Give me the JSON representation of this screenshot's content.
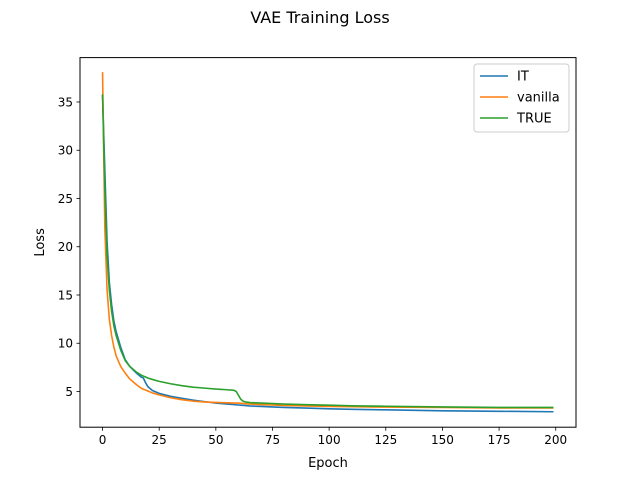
{
  "chart_data": {
    "type": "line",
    "title": "VAE Training Loss",
    "xlabel": "Epoch",
    "ylabel": "Loss",
    "xlim": [
      -9.95,
      208.95
    ],
    "ylim": [
      1.3,
      39.6
    ],
    "xticks": [
      0,
      25,
      50,
      75,
      100,
      125,
      150,
      175,
      200
    ],
    "yticks": [
      5,
      10,
      15,
      20,
      25,
      30,
      35
    ],
    "grid": false,
    "legend_position": "top-right",
    "x": [
      0,
      1,
      2,
      3,
      4,
      5,
      6,
      8,
      10,
      12,
      15,
      17,
      18,
      19,
      20,
      22,
      25,
      30,
      35,
      40,
      45,
      50,
      55,
      58,
      59,
      60,
      61,
      62,
      63,
      65,
      70,
      75,
      80,
      90,
      100,
      110,
      125,
      150,
      175,
      199
    ],
    "series": [
      {
        "name": "IT",
        "color": "#1f77b4",
        "values": [
          35.7,
          28.0,
          20.5,
          16.3,
          14.0,
          12.3,
          11.2,
          9.6,
          8.3,
          7.6,
          6.9,
          6.5,
          6.4,
          5.9,
          5.5,
          5.1,
          4.8,
          4.5,
          4.3,
          4.1,
          3.95,
          3.8,
          3.7,
          3.65,
          3.62,
          3.6,
          3.58,
          3.56,
          3.54,
          3.5,
          3.45,
          3.4,
          3.35,
          3.28,
          3.2,
          3.15,
          3.1,
          3.0,
          2.95,
          2.9
        ]
      },
      {
        "name": "vanilla",
        "color": "#ff7f0e",
        "values": [
          38.1,
          22.0,
          15.5,
          12.5,
          10.8,
          9.6,
          8.7,
          7.6,
          6.9,
          6.3,
          5.7,
          5.35,
          5.25,
          5.15,
          5.05,
          4.85,
          4.65,
          4.35,
          4.15,
          4.0,
          3.92,
          3.87,
          3.83,
          3.8,
          3.8,
          3.8,
          3.78,
          3.76,
          3.74,
          3.7,
          3.65,
          3.6,
          3.55,
          3.5,
          3.45,
          3.42,
          3.38,
          3.35,
          3.3,
          3.3
        ]
      },
      {
        "name": "TRUE",
        "color": "#2ca02c",
        "values": [
          35.8,
          26.0,
          19.0,
          15.5,
          13.3,
          11.8,
          10.8,
          9.3,
          8.2,
          7.6,
          7.0,
          6.7,
          6.6,
          6.5,
          6.4,
          6.25,
          6.05,
          5.8,
          5.6,
          5.45,
          5.35,
          5.25,
          5.18,
          5.12,
          5.0,
          4.6,
          4.2,
          4.0,
          3.92,
          3.85,
          3.8,
          3.75,
          3.7,
          3.63,
          3.58,
          3.52,
          3.47,
          3.4,
          3.35,
          3.35
        ]
      }
    ]
  }
}
